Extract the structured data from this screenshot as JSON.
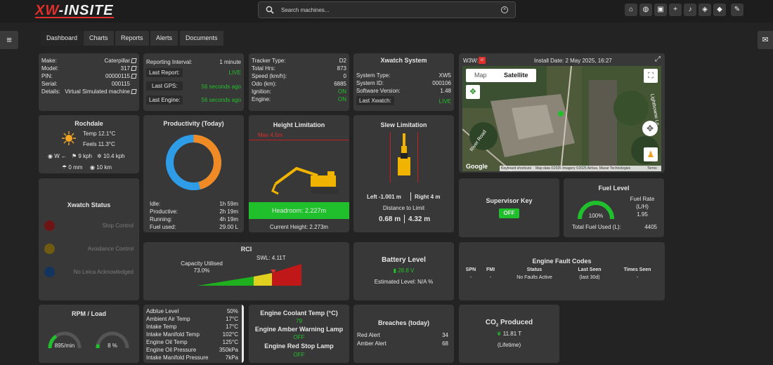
{
  "app": {
    "logo_prefix": "XW",
    "logo_suffix": "-INSITE"
  },
  "search": {
    "placeholder": "Search machines..."
  },
  "toolbar_icons": [
    "home-icon",
    "globe-icon",
    "camera-icon",
    "plus-box-icon",
    "bell-icon",
    "layers-split-icon",
    "layers-icon",
    "pencil-icon"
  ],
  "tabs": [
    "Dashboard",
    "Charts",
    "Reports",
    "Alerts",
    "Documents"
  ],
  "machine": {
    "make_label": "Make:",
    "make": "Caterpillar",
    "model_label": "Model:",
    "model": "317",
    "pin_label": "PIN:",
    "pin": "00000115",
    "serial_label": "Serial:",
    "serial": "000115",
    "details_label": "Details:",
    "details": "Virtual Simulated machine"
  },
  "reporting": {
    "interval_label": "Reporting Interval:",
    "interval": "1 minute",
    "last_report_label": "Last Report:",
    "last_report": "LIVE",
    "last_gps_label": "Last GPS:",
    "last_gps": "56 seconds ago",
    "last_engine_label": "Last Engine:",
    "last_engine": "56 seconds ago"
  },
  "tracker": {
    "type_label": "Tracker Type:",
    "type": "D2",
    "hrs_label": "Total Hrs:",
    "hrs": "873",
    "speed_label": "Speed (km/h):",
    "speed": "0",
    "odo_label": "Odo (km):",
    "odo": "6885",
    "ignition_label": "Ignition:",
    "ignition": "ON",
    "engine_label": "Engine:",
    "engine": "ON"
  },
  "xwatch": {
    "title": "Xwatch System",
    "type_label": "System Type:",
    "type": "XW5",
    "id_label": "System ID:",
    "id": "000106",
    "sw_label": "Software Version:",
    "sw": "1.48",
    "last_label": "Last Xwatch:",
    "last": "LIVE"
  },
  "map": {
    "w3w": "W3W:",
    "w3w_badge": "///",
    "install": "Install Date: 2 May 2025, 16:27",
    "tab_map": "Map",
    "tab_sat": "Satellite",
    "google": "Google",
    "attribution": [
      "Keyboard shortcuts",
      "Map data ©2025 Imagery ©2025 Airbus, Maxar Technologies",
      "Terms"
    ],
    "roads": [
      "River Road",
      "Lightbowne Ln"
    ]
  },
  "weather": {
    "city": "Rochdale",
    "temp": "Temp 12.1°C",
    "feels": "Feels 11.3°C",
    "wind_dir": "W",
    "wind": "9 kph",
    "gust": "10.4 kph",
    "rain": "0 mm",
    "visibility": "10 km"
  },
  "productivity": {
    "title": "Productivity (Today)",
    "idle_label": "Idle:",
    "idle": "1h 59m",
    "prod_label": "Productive:",
    "prod": "2h 19m",
    "run_label": "Running:",
    "run": "4h 19m",
    "fuel_label": "Fuel used:",
    "fuel": "29.00 L",
    "idle_fraction": 0.46,
    "colors": {
      "idle": "#f08a24",
      "productive": "#2f9ce8"
    }
  },
  "height": {
    "title": "Height Limitation",
    "max": "Max 4.5m",
    "headroom": "Headroom: 2.227m",
    "current": "Current Height: 2.273m"
  },
  "slew": {
    "title": "Slew Limitation",
    "left": "Left -1.001 m",
    "right": "Right 4 m",
    "dist": "Distance to Limit",
    "d1": "0.68 m",
    "d2": "4.32 m"
  },
  "xwatch_status": {
    "title": "Xwatch Status",
    "items": [
      {
        "label": "Stop Control",
        "color": "#6e1414"
      },
      {
        "label": "Avoidance Control",
        "color": "#6e5a10"
      },
      {
        "label": "No Leica Acknowledged",
        "color": "#12345e"
      }
    ]
  },
  "supervisor": {
    "title": "Supervisor Key",
    "state": "OFF"
  },
  "fuel": {
    "title": "Fuel Level",
    "pct": "100%",
    "rate_label": "Fuel Rate",
    "rate_unit": "(L/H)",
    "rate": "1.95",
    "total_label": "Total Fuel Used (L):",
    "total": "4405",
    "level": 1.0
  },
  "rci": {
    "title": "RCI",
    "cap_label": "Capacity Utilised",
    "cap": "73.0%",
    "swl": "SWL: 4.11T",
    "utilised": 0.73
  },
  "battery": {
    "title": "Battery Level",
    "volt": "28.8 V",
    "est": "Estimated Level: N/A %"
  },
  "fault": {
    "title": "Engine Fault Codes",
    "headers": [
      "SPN",
      "FMI",
      "Status",
      "Last Seen",
      "Times Seen"
    ],
    "row": [
      "-",
      "-",
      "No Faults Active",
      "(last 30d)",
      "-"
    ]
  },
  "rpm": {
    "title": "RPM / Load",
    "rpm": "895/min",
    "load": "8 %",
    "rpm_fraction": 0.3,
    "load_fraction": 0.08
  },
  "engine": {
    "rows": [
      [
        "Adblue Level",
        "50%"
      ],
      [
        "Ambient Air Temp",
        "17°C"
      ],
      [
        "Intake Temp",
        "17°C"
      ],
      [
        "Intake Manifold Temp",
        "102°C"
      ],
      [
        "Engine Oil Temp",
        "125°C"
      ],
      [
        "Engine Oil Pressure",
        "350kPa"
      ],
      [
        "Intake Manifold Pressure",
        "7kPa"
      ]
    ]
  },
  "coolant": {
    "title": "Engine Coolant Temp (°C)",
    "value": "79",
    "amber_title": "Engine Amber Warning Lamp",
    "amber": "OFF",
    "red_title": "Engine Red Stop Lamp",
    "red": "OFF"
  },
  "breaches": {
    "title": "Breaches (today)",
    "red_label": "Red Alert",
    "red": "34",
    "amber_label": "Amber Alert",
    "amber": "68"
  },
  "co2": {
    "title_a": "CO",
    "title_sub": "2",
    "title_b": " Produced",
    "value": "11.81 T",
    "lifetime": "(Lifetime)"
  }
}
